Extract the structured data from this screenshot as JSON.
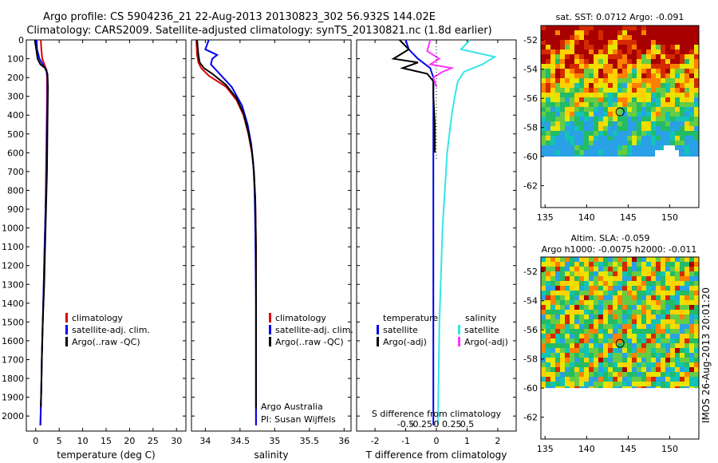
{
  "header": {
    "line1": "Argo profile: CS 5904236_21 22-Aug-2013 20130823_302 56.932S 144.02E",
    "line2": "Climatology: CARS2009. Satellite-adjusted climatology: synTS_20130821.nc (1.8d earlier)"
  },
  "side_label": "IMOS 26-Aug-2013 20:01:20",
  "colors": {
    "climatology": "#dd0000",
    "satellite_adj": "#0000ee",
    "argo": "#000000",
    "sat_salinity": "#33e6e6",
    "argo_salinity": "#ff33ff"
  },
  "chart_data": [
    {
      "id": "temperature",
      "type": "line",
      "xlabel": "temperature (deg C)",
      "xlim": [
        -2,
        32
      ],
      "xticks": [
        0,
        5,
        10,
        15,
        20,
        25,
        30
      ],
      "ylim": [
        2080,
        0
      ],
      "yticks": [
        0,
        100,
        200,
        300,
        400,
        500,
        600,
        700,
        800,
        900,
        1000,
        1100,
        1200,
        1300,
        1400,
        1500,
        1600,
        1700,
        1800,
        1900,
        2000
      ],
      "legend": [
        "climatology",
        "satellite-adj. clim.",
        "Argo(..raw -QC)"
      ],
      "series": [
        {
          "name": "climatology",
          "color": "#dd0000",
          "x": [
            1.1,
            1.2,
            1.4,
            2.0,
            2.3,
            2.4,
            2.4,
            2.3,
            2.2,
            2.1,
            1.9,
            1.7,
            1.5,
            1.3,
            1.2,
            1.1,
            1.0
          ],
          "y": [
            0,
            50,
            100,
            140,
            160,
            200,
            300,
            500,
            700,
            900,
            1100,
            1300,
            1500,
            1700,
            1850,
            1950,
            2050
          ]
        },
        {
          "name": "satellite-adj. clim.",
          "color": "#0000ee",
          "x": [
            0.2,
            0.3,
            0.8,
            1.7,
            2.3,
            2.5,
            2.5,
            2.4,
            2.3,
            2.1,
            1.9,
            1.7,
            1.5,
            1.3,
            1.2,
            1.1,
            1.0
          ],
          "y": [
            0,
            50,
            100,
            140,
            160,
            200,
            300,
            500,
            700,
            900,
            1100,
            1300,
            1500,
            1700,
            1850,
            1950,
            2050
          ]
        },
        {
          "name": "Argo(..raw -QC)",
          "color": "#000000",
          "x": [
            -0.2,
            0.1,
            0.4,
            1.0,
            2.0,
            2.5,
            2.6,
            2.5,
            2.4,
            2.2,
            2.0,
            1.8,
            1.5,
            1.3,
            1.2,
            1.1
          ],
          "y": [
            0,
            50,
            100,
            130,
            150,
            180,
            250,
            450,
            700,
            900,
            1100,
            1300,
            1500,
            1700,
            1850,
            1950
          ]
        }
      ]
    },
    {
      "id": "salinity",
      "type": "line",
      "xlabel": "salinity",
      "xlim": [
        33.8,
        36.1
      ],
      "xticks": [
        34,
        34.5,
        35,
        35.5,
        36
      ],
      "xticklabels": [
        "34",
        "34.5",
        "35",
        "35.5",
        "36"
      ],
      "ylim": [
        2080,
        0
      ],
      "legend": [
        "climatology",
        "satellite-adj. clim.",
        "Argo(..raw -QC)"
      ],
      "annotation": [
        "Argo Australia",
        "PI: Susan Wijffels"
      ],
      "series": [
        {
          "name": "climatology",
          "color": "#dd0000",
          "x": [
            33.87,
            33.88,
            33.9,
            33.94,
            34.05,
            34.3,
            34.45,
            34.55,
            34.62,
            34.67,
            34.7,
            34.72,
            34.73,
            34.73,
            34.73,
            34.73
          ],
          "y": [
            0,
            80,
            120,
            150,
            190,
            250,
            320,
            400,
            500,
            600,
            700,
            850,
            1100,
            1500,
            1800,
            2050
          ]
        },
        {
          "name": "satellite-adj. clim.",
          "color": "#0000ee",
          "x": [
            34.05,
            34.0,
            34.17,
            34.1,
            34.08,
            34.18,
            34.38,
            34.53,
            34.61,
            34.66,
            34.69,
            34.71,
            34.72,
            34.73,
            34.73,
            34.73
          ],
          "y": [
            0,
            50,
            80,
            100,
            130,
            170,
            250,
            350,
            450,
            550,
            650,
            800,
            1000,
            1400,
            1800,
            2050
          ]
        },
        {
          "name": "Argo(..raw -QC)",
          "color": "#000000",
          "x": [
            33.88,
            33.9,
            33.92,
            33.98,
            34.1,
            34.3,
            34.45,
            34.55,
            34.62,
            34.67,
            34.7,
            34.72,
            34.73,
            34.73,
            34.73
          ],
          "y": [
            0,
            80,
            120,
            150,
            180,
            240,
            310,
            390,
            490,
            590,
            700,
            850,
            1100,
            1500,
            1960
          ]
        }
      ]
    },
    {
      "id": "difference",
      "type": "line",
      "xlabel": "T difference from climatology",
      "s_label": "S difference from climatology",
      "xlim": [
        -2.6,
        2.6
      ],
      "xticks": [
        -2,
        -1,
        0,
        1,
        2
      ],
      "s_xticks": [
        -0.5,
        -0.25,
        0,
        0.25,
        0.5
      ],
      "s_xticklabels": [
        "-0.5",
        "-0.25",
        "0",
        "0.25",
        "0.5"
      ],
      "ylim": [
        2080,
        0
      ],
      "legend_temperature": {
        "heading": "temperature",
        "items": [
          "satellite",
          "Argo(-adj)"
        ]
      },
      "legend_salinity": {
        "heading": "salinity",
        "items": [
          "satellite",
          "Argo(-adj)"
        ]
      },
      "series": [
        {
          "name": "temperature satellite",
          "color": "#0000ee",
          "x": [
            -1.0,
            -0.9,
            -0.6,
            -0.2,
            -0.1,
            -0.1,
            -0.1,
            -0.1,
            -0.1,
            -0.1,
            -0.1
          ],
          "y": [
            0,
            50,
            100,
            150,
            200,
            400,
            800,
            1200,
            1600,
            1900,
            2050
          ]
        },
        {
          "name": "temperature Argo(-adj)",
          "color": "#000000",
          "x": [
            -1.2,
            -0.9,
            -1.4,
            -0.6,
            -1.1,
            -0.3,
            -0.1,
            -0.1,
            -0.05,
            -0.05
          ],
          "y": [
            0,
            50,
            100,
            120,
            150,
            180,
            220,
            300,
            450,
            600
          ]
        },
        {
          "name": "salinity satellite",
          "color": "#33e6e6",
          "x": [
            1.1,
            0.8,
            1.9,
            1.5,
            0.9,
            0.7,
            0.6,
            0.5,
            0.35,
            0.2,
            0.1,
            0.05
          ],
          "y": [
            0,
            50,
            90,
            130,
            170,
            220,
            300,
            400,
            600,
            1000,
            1500,
            2050
          ]
        },
        {
          "name": "salinity Argo(-adj)",
          "color": "#ff33ff",
          "x": [
            -0.2,
            -0.3,
            0.1,
            -0.2,
            0.5,
            0.2,
            -0.1,
            0.0
          ],
          "y": [
            0,
            60,
            100,
            130,
            150,
            170,
            200,
            250
          ]
        }
      ]
    },
    {
      "id": "sst_map",
      "type": "heatmap",
      "title": "sat. SST: 0.0712 Argo: -0.091",
      "xlim": [
        134.5,
        153.5
      ],
      "ylim": [
        -63.5,
        -51
      ],
      "xticks": [
        135,
        140,
        145,
        150
      ],
      "yticks": [
        -52,
        -54,
        -56,
        -58,
        -60,
        -62
      ],
      "marker": [
        144.02,
        -56.93
      ]
    },
    {
      "id": "sla_map",
      "type": "heatmap",
      "title": "Altim. SLA: -0.059",
      "subtitle": "Argo h1000: -0.0075 h2000: -0.011",
      "xlim": [
        134.5,
        153.5
      ],
      "ylim": [
        -63.5,
        -51
      ],
      "xticks": [
        135,
        140,
        145,
        150
      ],
      "yticks": [
        -52,
        -54,
        -56,
        -58,
        -60,
        -62
      ],
      "marker": [
        144.02,
        -56.93
      ]
    }
  ]
}
